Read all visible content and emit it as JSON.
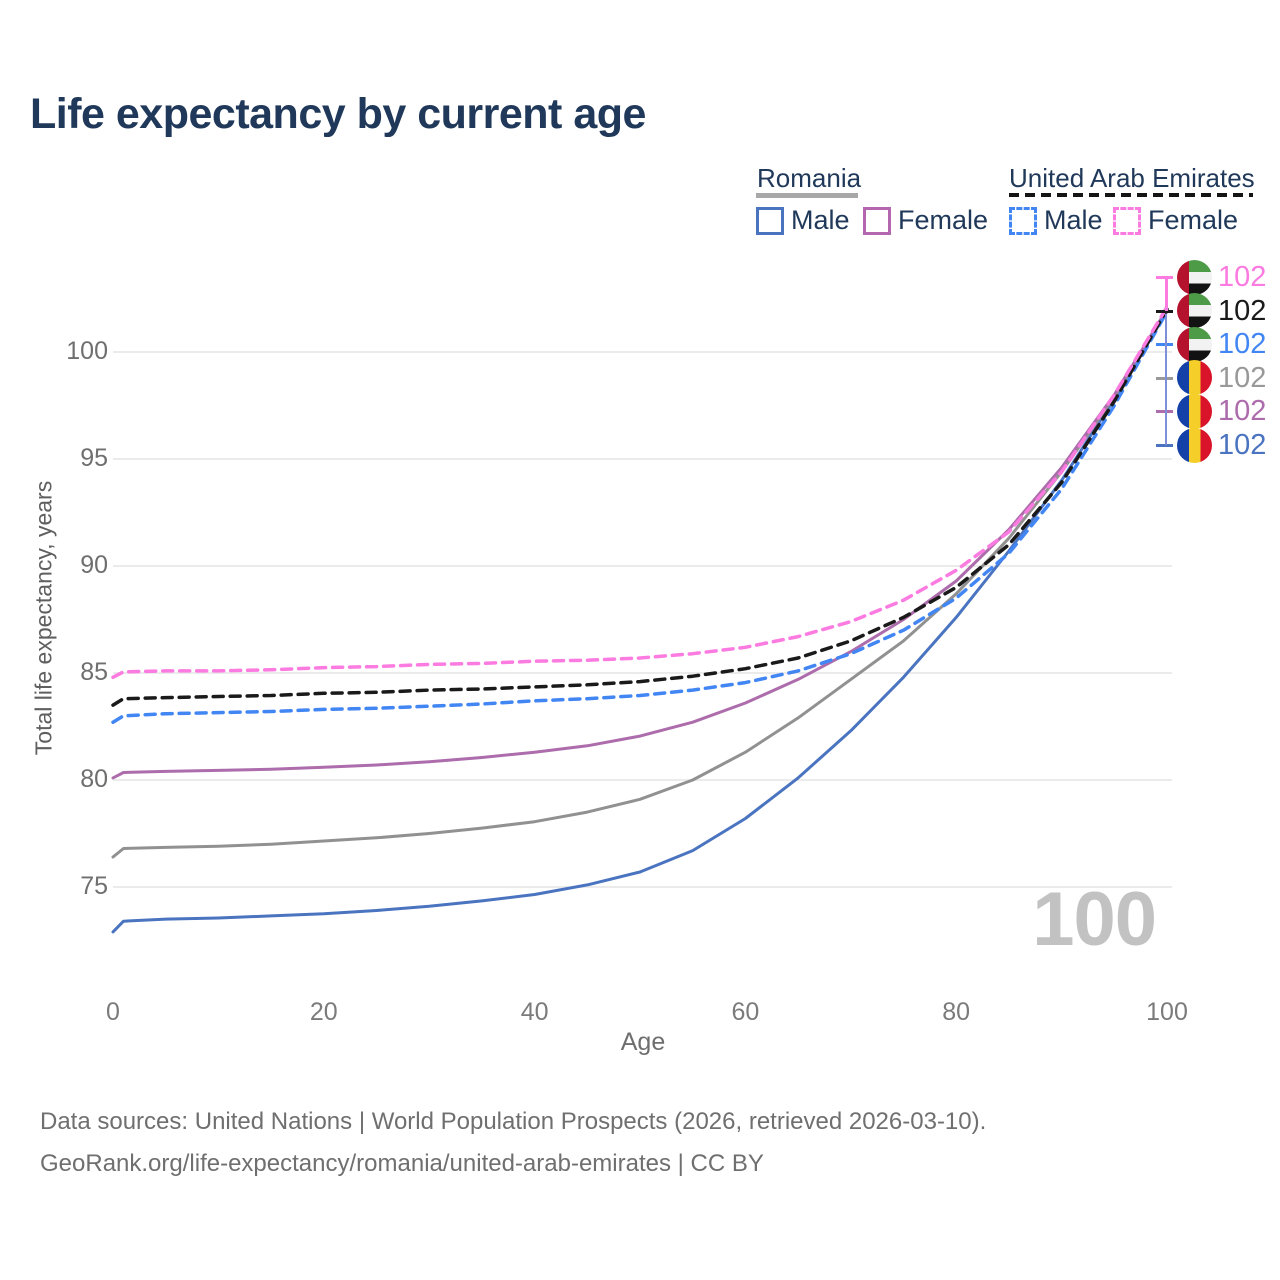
{
  "title": "Life expectancy by current age",
  "legend": {
    "romania": {
      "label": "Romania",
      "male": "Male",
      "female": "Female"
    },
    "uae": {
      "label": "United Arab Emirates",
      "male": "Male",
      "female": "Female"
    }
  },
  "axes": {
    "y_label": "Total life expectancy, years",
    "x_label": "Age",
    "y_ticks": [
      75,
      80,
      85,
      90,
      95,
      100
    ],
    "x_ticks": [
      0,
      20,
      40,
      60,
      80,
      100
    ]
  },
  "watermark": "100",
  "end_labels": [
    {
      "flag": "are",
      "value": "102",
      "color": "#fb7be0"
    },
    {
      "flag": "are",
      "value": "102",
      "color": "#1a1a1a"
    },
    {
      "flag": "are",
      "value": "102",
      "color": "#4286f4"
    },
    {
      "flag": "rou",
      "value": "102",
      "color": "#999999"
    },
    {
      "flag": "rou",
      "value": "102",
      "color": "#ad6cab"
    },
    {
      "flag": "rou",
      "value": "102",
      "color": "#4a74c0"
    }
  ],
  "connector_colors": {
    "top": "#fb7be0",
    "bottom": "#7e8fd8"
  },
  "footer": {
    "line1": "Data sources: United Nations | World Population Prospects (2026, retrieved 2026-03-10).",
    "line2": "GeoRank.org/life-expectancy/romania/united-arab-emirates | CC BY"
  },
  "chart_data": {
    "type": "line",
    "title": "Life expectancy by current age",
    "xlabel": "Age",
    "ylabel": "Total life expectancy, years",
    "xlim": [
      0,
      100
    ],
    "ylim": [
      72,
      103
    ],
    "grid": "horizontal",
    "legend_position": "top-right",
    "x": [
      0,
      1,
      5,
      10,
      15,
      20,
      25,
      30,
      35,
      40,
      45,
      50,
      55,
      60,
      65,
      70,
      75,
      80,
      85,
      90,
      95,
      100
    ],
    "series": [
      {
        "name": "Romania — Male",
        "country": "Romania",
        "sex": "Male",
        "style": "solid",
        "color": "#4a74c0",
        "end_label": 102,
        "values": [
          72.9,
          73.4,
          73.5,
          73.55,
          73.65,
          73.75,
          73.9,
          74.1,
          74.35,
          74.65,
          75.1,
          75.7,
          76.7,
          78.2,
          80.1,
          82.3,
          84.8,
          87.6,
          90.7,
          94.0,
          97.8,
          101.9
        ]
      },
      {
        "name": "Romania — Both sexes",
        "country": "Romania",
        "sex": "Both",
        "style": "solid",
        "color": "#919191",
        "end_label": 102,
        "values": [
          76.4,
          76.8,
          76.85,
          76.9,
          77.0,
          77.15,
          77.3,
          77.5,
          77.75,
          78.05,
          78.5,
          79.1,
          80.0,
          81.3,
          82.9,
          84.7,
          86.5,
          88.7,
          91.3,
          94.4,
          97.9,
          101.9
        ]
      },
      {
        "name": "Romania — Female",
        "country": "Romania",
        "sex": "Female",
        "style": "solid",
        "color": "#ad6cab",
        "end_label": 102,
        "values": [
          80.1,
          80.35,
          80.4,
          80.45,
          80.5,
          80.6,
          80.7,
          80.85,
          81.05,
          81.3,
          81.6,
          82.05,
          82.7,
          83.6,
          84.7,
          86.0,
          87.5,
          89.3,
          91.7,
          94.6,
          98.0,
          102.0
        ]
      },
      {
        "name": "United Arab Emirates — Male",
        "country": "United Arab Emirates",
        "sex": "Male",
        "style": "dashed",
        "color": "#4286f4",
        "end_label": 102,
        "values": [
          82.7,
          83.0,
          83.1,
          83.15,
          83.2,
          83.3,
          83.35,
          83.45,
          83.55,
          83.7,
          83.8,
          83.95,
          84.2,
          84.55,
          85.1,
          85.9,
          87.0,
          88.5,
          90.6,
          93.6,
          97.5,
          101.9
        ]
      },
      {
        "name": "United Arab Emirates — Both sexes",
        "country": "United Arab Emirates",
        "sex": "Both",
        "style": "dashed",
        "color": "#1a1a1a",
        "end_label": 102,
        "values": [
          83.5,
          83.8,
          83.85,
          83.9,
          83.95,
          84.05,
          84.1,
          84.2,
          84.25,
          84.35,
          84.45,
          84.6,
          84.85,
          85.2,
          85.7,
          86.5,
          87.6,
          89.0,
          91.0,
          93.9,
          97.7,
          102.0
        ]
      },
      {
        "name": "United Arab Emirates — Female",
        "country": "United Arab Emirates",
        "sex": "Female",
        "style": "dashed",
        "color": "#fb7be0",
        "end_label": 102,
        "values": [
          84.8,
          85.05,
          85.1,
          85.1,
          85.15,
          85.25,
          85.3,
          85.4,
          85.45,
          85.55,
          85.6,
          85.7,
          85.9,
          86.2,
          86.7,
          87.4,
          88.4,
          89.8,
          91.6,
          94.4,
          98.0,
          102.1
        ]
      }
    ]
  }
}
